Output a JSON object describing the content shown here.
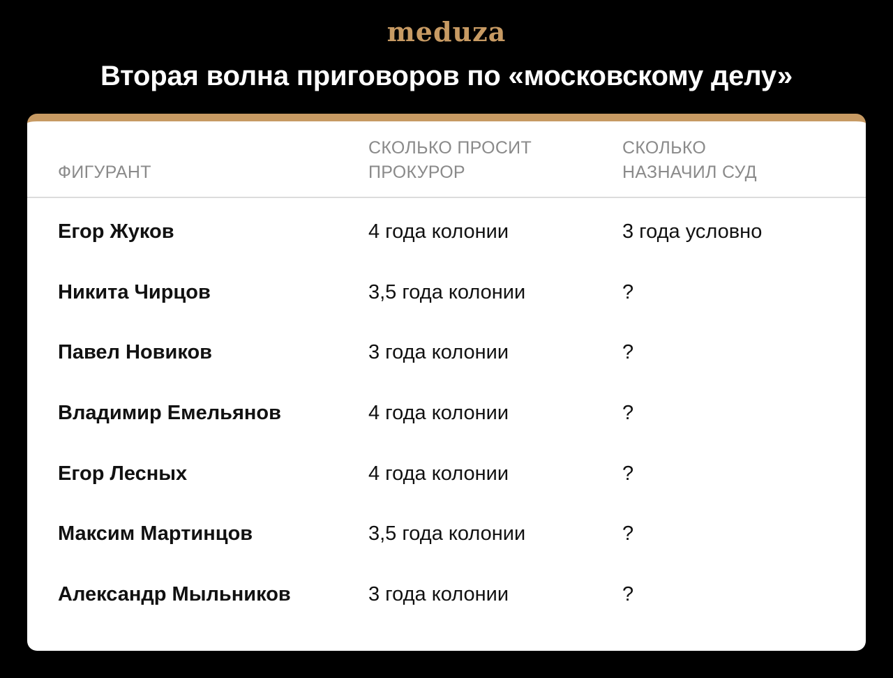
{
  "brand": {
    "logo_text": "meduza",
    "logo_color": "#c79a63"
  },
  "title": "Вторая волна приговоров по «московскому делу»",
  "card": {
    "accent_color": "#c79a63"
  },
  "table": {
    "headers": {
      "defendant": [
        "ФИГУРАНТ"
      ],
      "prosecutor": [
        "СКОЛЬКО ПРОСИТ",
        "ПРОКУРОР"
      ],
      "court": [
        "СКОЛЬКО",
        "НАЗНАЧИЛ СУД"
      ]
    },
    "rows": [
      {
        "name": "Егор Жуков",
        "prosecutor": "4 года колонии",
        "court": "3 года условно"
      },
      {
        "name": "Никита Чирцов",
        "prosecutor": "3,5 года колонии",
        "court": "?"
      },
      {
        "name": "Павел Новиков",
        "prosecutor": "3 года колонии",
        "court": "?"
      },
      {
        "name": "Владимир Емельянов",
        "prosecutor": "4 года колонии",
        "court": "?"
      },
      {
        "name": "Егор Лесных",
        "prosecutor": "4 года колонии",
        "court": "?"
      },
      {
        "name": "Максим Мартинцов",
        "prosecutor": "3,5 года колонии",
        "court": "?"
      },
      {
        "name": "Александр Мыльников",
        "prosecutor": "3 года колонии",
        "court": "?"
      }
    ]
  }
}
